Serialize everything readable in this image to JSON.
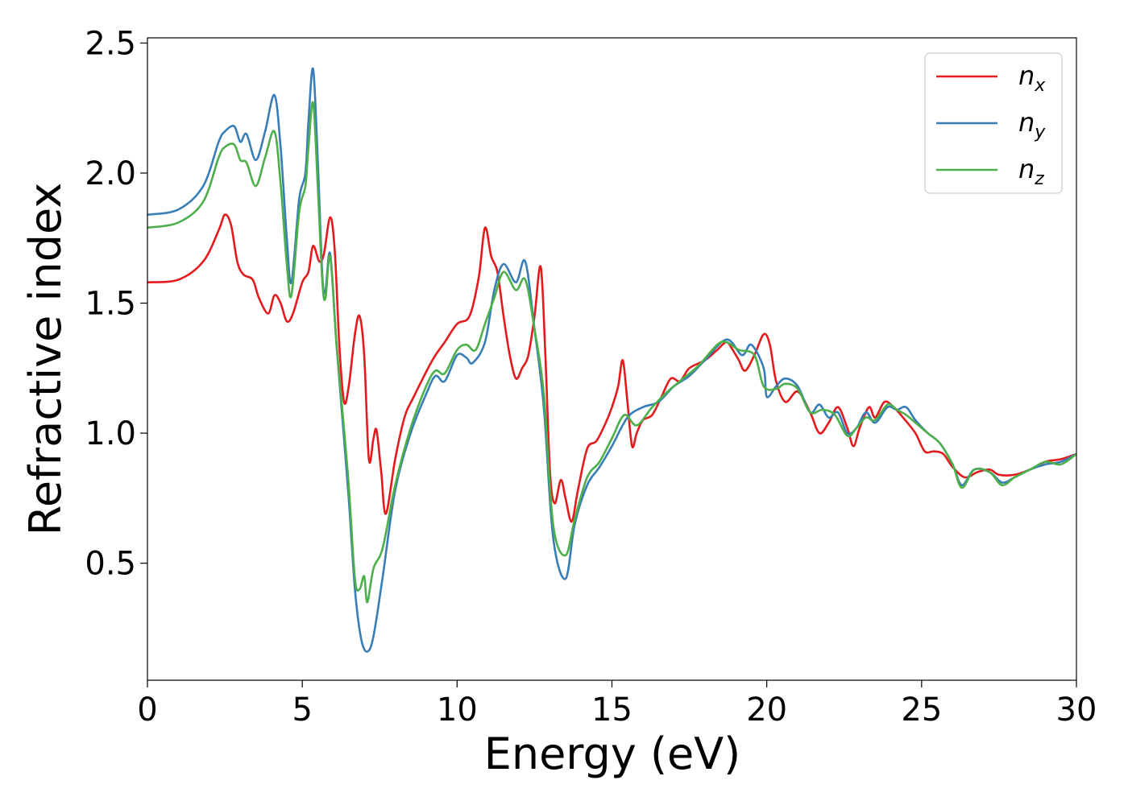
{
  "chart_data": {
    "type": "line",
    "title": "",
    "xlabel": "Energy (eV)",
    "ylabel": "Refractive index",
    "xlim": [
      0,
      30
    ],
    "ylim": [
      0.05,
      2.52
    ],
    "xticks": [
      0,
      5,
      10,
      15,
      20,
      25,
      30
    ],
    "xtick_labels": [
      "0",
      "5",
      "10",
      "15",
      "20",
      "25",
      "30"
    ],
    "yticks": [
      0.5,
      1.0,
      1.5,
      2.0,
      2.5
    ],
    "ytick_labels": [
      "0.5",
      "1.0",
      "1.5",
      "2.0",
      "2.5"
    ],
    "grid": false,
    "legend_position": "top-right",
    "series": [
      {
        "name": "n_x",
        "label_main": "n",
        "label_sub": "x",
        "color": "#e41a1c",
        "points": [
          [
            0,
            1.58
          ],
          [
            1,
            1.59
          ],
          [
            1.8,
            1.66
          ],
          [
            2.3,
            1.78
          ],
          [
            2.5,
            1.84
          ],
          [
            2.7,
            1.8
          ],
          [
            2.9,
            1.66
          ],
          [
            3.1,
            1.61
          ],
          [
            3.4,
            1.59
          ],
          [
            3.6,
            1.52
          ],
          [
            3.9,
            1.46
          ],
          [
            4.1,
            1.53
          ],
          [
            4.3,
            1.5
          ],
          [
            4.5,
            1.43
          ],
          [
            4.7,
            1.46
          ],
          [
            5.0,
            1.58
          ],
          [
            5.2,
            1.62
          ],
          [
            5.35,
            1.72
          ],
          [
            5.55,
            1.66
          ],
          [
            5.7,
            1.69
          ],
          [
            5.9,
            1.83
          ],
          [
            6.05,
            1.7
          ],
          [
            6.2,
            1.33
          ],
          [
            6.35,
            1.12
          ],
          [
            6.5,
            1.18
          ],
          [
            6.7,
            1.38
          ],
          [
            6.85,
            1.45
          ],
          [
            7.0,
            1.3
          ],
          [
            7.15,
            0.9
          ],
          [
            7.3,
            0.98
          ],
          [
            7.4,
            1.01
          ],
          [
            7.55,
            0.85
          ],
          [
            7.7,
            0.69
          ],
          [
            8.0,
            0.9
          ],
          [
            8.3,
            1.06
          ],
          [
            8.6,
            1.14
          ],
          [
            9.2,
            1.28
          ],
          [
            9.6,
            1.35
          ],
          [
            10.0,
            1.42
          ],
          [
            10.4,
            1.45
          ],
          [
            10.7,
            1.6
          ],
          [
            10.9,
            1.79
          ],
          [
            11.1,
            1.68
          ],
          [
            11.3,
            1.62
          ],
          [
            11.5,
            1.45
          ],
          [
            11.7,
            1.3
          ],
          [
            11.9,
            1.21
          ],
          [
            12.1,
            1.25
          ],
          [
            12.3,
            1.3
          ],
          [
            12.5,
            1.45
          ],
          [
            12.7,
            1.64
          ],
          [
            12.85,
            1.3
          ],
          [
            13.0,
            0.85
          ],
          [
            13.15,
            0.73
          ],
          [
            13.35,
            0.82
          ],
          [
            13.5,
            0.75
          ],
          [
            13.7,
            0.66
          ],
          [
            13.9,
            0.78
          ],
          [
            14.2,
            0.94
          ],
          [
            14.5,
            0.97
          ],
          [
            14.8,
            1.04
          ],
          [
            15.0,
            1.1
          ],
          [
            15.2,
            1.18
          ],
          [
            15.35,
            1.28
          ],
          [
            15.5,
            1.12
          ],
          [
            15.65,
            0.95
          ],
          [
            15.8,
            1.0
          ],
          [
            16.0,
            1.05
          ],
          [
            16.3,
            1.07
          ],
          [
            16.6,
            1.14
          ],
          [
            16.9,
            1.21
          ],
          [
            17.2,
            1.2
          ],
          [
            17.5,
            1.25
          ],
          [
            18.0,
            1.28
          ],
          [
            18.4,
            1.32
          ],
          [
            18.7,
            1.35
          ],
          [
            18.9,
            1.32
          ],
          [
            19.1,
            1.28
          ],
          [
            19.3,
            1.24
          ],
          [
            19.6,
            1.3
          ],
          [
            19.9,
            1.38
          ],
          [
            20.1,
            1.34
          ],
          [
            20.3,
            1.2
          ],
          [
            20.6,
            1.12
          ],
          [
            21.0,
            1.16
          ],
          [
            21.4,
            1.08
          ],
          [
            21.7,
            1.0
          ],
          [
            22.0,
            1.04
          ],
          [
            22.3,
            1.1
          ],
          [
            22.6,
            1.02
          ],
          [
            22.8,
            0.95
          ],
          [
            23.0,
            1.02
          ],
          [
            23.3,
            1.1
          ],
          [
            23.5,
            1.06
          ],
          [
            23.8,
            1.12
          ],
          [
            24.1,
            1.1
          ],
          [
            24.4,
            1.06
          ],
          [
            24.8,
            1.0
          ],
          [
            25.1,
            0.93
          ],
          [
            25.4,
            0.93
          ],
          [
            25.7,
            0.92
          ],
          [
            26.0,
            0.87
          ],
          [
            26.4,
            0.83
          ],
          [
            26.8,
            0.85
          ],
          [
            27.2,
            0.86
          ],
          [
            27.5,
            0.84
          ],
          [
            28.0,
            0.84
          ],
          [
            28.5,
            0.86
          ],
          [
            29.0,
            0.89
          ],
          [
            29.5,
            0.9
          ],
          [
            30.0,
            0.92
          ]
        ]
      },
      {
        "name": "n_y",
        "label_main": "n",
        "label_sub": "y",
        "color": "#377eb8",
        "points": [
          [
            0,
            1.84
          ],
          [
            1,
            1.86
          ],
          [
            1.8,
            1.95
          ],
          [
            2.3,
            2.12
          ],
          [
            2.5,
            2.16
          ],
          [
            2.8,
            2.18
          ],
          [
            3.0,
            2.12
          ],
          [
            3.2,
            2.15
          ],
          [
            3.5,
            2.05
          ],
          [
            3.8,
            2.16
          ],
          [
            4.1,
            2.3
          ],
          [
            4.3,
            2.1
          ],
          [
            4.5,
            1.75
          ],
          [
            4.65,
            1.58
          ],
          [
            4.9,
            1.9
          ],
          [
            5.1,
            2.0
          ],
          [
            5.2,
            2.2
          ],
          [
            5.35,
            2.4
          ],
          [
            5.5,
            2.05
          ],
          [
            5.65,
            1.6
          ],
          [
            5.75,
            1.55
          ],
          [
            5.9,
            1.69
          ],
          [
            6.1,
            1.35
          ],
          [
            6.3,
            1.05
          ],
          [
            6.5,
            0.75
          ],
          [
            6.7,
            0.4
          ],
          [
            6.9,
            0.21
          ],
          [
            7.1,
            0.16
          ],
          [
            7.3,
            0.22
          ],
          [
            7.6,
            0.45
          ],
          [
            8.0,
            0.78
          ],
          [
            8.5,
            1.0
          ],
          [
            9.0,
            1.15
          ],
          [
            9.3,
            1.22
          ],
          [
            9.6,
            1.2
          ],
          [
            10.0,
            1.3
          ],
          [
            10.3,
            1.29
          ],
          [
            10.5,
            1.27
          ],
          [
            10.9,
            1.35
          ],
          [
            11.2,
            1.55
          ],
          [
            11.5,
            1.65
          ],
          [
            11.9,
            1.58
          ],
          [
            12.2,
            1.66
          ],
          [
            12.5,
            1.4
          ],
          [
            12.8,
            1.1
          ],
          [
            13.1,
            0.6
          ],
          [
            13.5,
            0.44
          ],
          [
            13.8,
            0.65
          ],
          [
            14.2,
            0.8
          ],
          [
            14.6,
            0.87
          ],
          [
            15.0,
            0.95
          ],
          [
            15.5,
            1.06
          ],
          [
            16.0,
            1.1
          ],
          [
            16.5,
            1.12
          ],
          [
            17.0,
            1.18
          ],
          [
            17.5,
            1.22
          ],
          [
            18.0,
            1.28
          ],
          [
            18.7,
            1.36
          ],
          [
            19.2,
            1.3
          ],
          [
            19.5,
            1.34
          ],
          [
            19.9,
            1.25
          ],
          [
            20.0,
            1.14
          ],
          [
            20.3,
            1.18
          ],
          [
            20.6,
            1.21
          ],
          [
            21.0,
            1.18
          ],
          [
            21.4,
            1.08
          ],
          [
            21.7,
            1.11
          ],
          [
            22.0,
            1.06
          ],
          [
            22.3,
            1.08
          ],
          [
            22.6,
            1.0
          ],
          [
            22.9,
            1.02
          ],
          [
            23.2,
            1.08
          ],
          [
            23.5,
            1.04
          ],
          [
            23.9,
            1.1
          ],
          [
            24.2,
            1.09
          ],
          [
            24.5,
            1.1
          ],
          [
            24.8,
            1.05
          ],
          [
            25.2,
            1.0
          ],
          [
            25.6,
            0.96
          ],
          [
            26.0,
            0.88
          ],
          [
            26.3,
            0.8
          ],
          [
            26.7,
            0.86
          ],
          [
            27.2,
            0.85
          ],
          [
            27.6,
            0.81
          ],
          [
            28.0,
            0.83
          ],
          [
            28.5,
            0.86
          ],
          [
            29.0,
            0.88
          ],
          [
            29.5,
            0.89
          ],
          [
            30.0,
            0.92
          ]
        ]
      },
      {
        "name": "n_z",
        "label_main": "n",
        "label_sub": "z",
        "color": "#4daf4a",
        "points": [
          [
            0,
            1.79
          ],
          [
            1,
            1.81
          ],
          [
            1.8,
            1.89
          ],
          [
            2.3,
            2.06
          ],
          [
            2.5,
            2.1
          ],
          [
            2.8,
            2.11
          ],
          [
            3.0,
            2.05
          ],
          [
            3.2,
            2.04
          ],
          [
            3.5,
            1.95
          ],
          [
            3.8,
            2.06
          ],
          [
            4.1,
            2.16
          ],
          [
            4.3,
            1.96
          ],
          [
            4.5,
            1.65
          ],
          [
            4.65,
            1.53
          ],
          [
            4.9,
            1.85
          ],
          [
            5.1,
            1.95
          ],
          [
            5.2,
            2.1
          ],
          [
            5.35,
            2.27
          ],
          [
            5.5,
            1.95
          ],
          [
            5.65,
            1.58
          ],
          [
            5.75,
            1.52
          ],
          [
            5.9,
            1.68
          ],
          [
            6.1,
            1.35
          ],
          [
            6.3,
            1.08
          ],
          [
            6.5,
            0.8
          ],
          [
            6.7,
            0.44
          ],
          [
            6.85,
            0.4
          ],
          [
            7.0,
            0.45
          ],
          [
            7.1,
            0.35
          ],
          [
            7.3,
            0.48
          ],
          [
            7.6,
            0.56
          ],
          [
            8.0,
            0.8
          ],
          [
            8.5,
            1.02
          ],
          [
            9.0,
            1.18
          ],
          [
            9.3,
            1.24
          ],
          [
            9.6,
            1.23
          ],
          [
            10.0,
            1.32
          ],
          [
            10.3,
            1.34
          ],
          [
            10.6,
            1.32
          ],
          [
            10.9,
            1.42
          ],
          [
            11.2,
            1.52
          ],
          [
            11.5,
            1.62
          ],
          [
            11.9,
            1.55
          ],
          [
            12.2,
            1.59
          ],
          [
            12.5,
            1.4
          ],
          [
            12.8,
            1.15
          ],
          [
            13.1,
            0.65
          ],
          [
            13.5,
            0.53
          ],
          [
            13.8,
            0.67
          ],
          [
            14.2,
            0.83
          ],
          [
            14.6,
            0.89
          ],
          [
            15.0,
            0.98
          ],
          [
            15.4,
            1.07
          ],
          [
            15.8,
            1.03
          ],
          [
            16.3,
            1.1
          ],
          [
            16.8,
            1.16
          ],
          [
            17.3,
            1.21
          ],
          [
            17.8,
            1.26
          ],
          [
            18.4,
            1.34
          ],
          [
            18.7,
            1.35
          ],
          [
            19.1,
            1.32
          ],
          [
            19.6,
            1.3
          ],
          [
            19.9,
            1.18
          ],
          [
            20.3,
            1.17
          ],
          [
            20.6,
            1.19
          ],
          [
            21.0,
            1.17
          ],
          [
            21.4,
            1.08
          ],
          [
            21.8,
            1.09
          ],
          [
            22.2,
            1.07
          ],
          [
            22.6,
            0.99
          ],
          [
            22.9,
            1.02
          ],
          [
            23.2,
            1.06
          ],
          [
            23.5,
            1.05
          ],
          [
            23.9,
            1.11
          ],
          [
            24.2,
            1.09
          ],
          [
            24.5,
            1.07
          ],
          [
            24.8,
            1.04
          ],
          [
            25.2,
            1.0
          ],
          [
            25.6,
            0.96
          ],
          [
            26.0,
            0.88
          ],
          [
            26.3,
            0.79
          ],
          [
            26.7,
            0.86
          ],
          [
            27.2,
            0.85
          ],
          [
            27.6,
            0.8
          ],
          [
            28.0,
            0.83
          ],
          [
            28.5,
            0.86
          ],
          [
            29.0,
            0.89
          ],
          [
            29.5,
            0.88
          ],
          [
            30.0,
            0.92
          ]
        ]
      }
    ]
  }
}
